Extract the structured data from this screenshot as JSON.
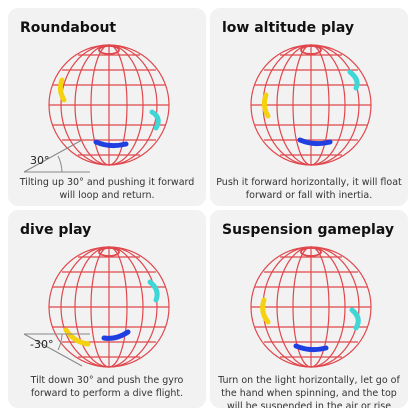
{
  "panels": [
    {
      "title": "Roundabout",
      "caption": "Tilting up 30° and pushing it forward will loop and return.",
      "angle_label": "30°"
    },
    {
      "title": "low altitude play",
      "caption": "Push it forward horizontally, it will float forward or fall with inertia."
    },
    {
      "title": "dive play",
      "caption": "Tilt down 30° and push the gyro forward to perform a dive flight.",
      "angle_label": "-30°"
    },
    {
      "title": "Suspension gameplay",
      "caption": "Turn on the light horizontally, let go of the hand when spinning, and the top will be suspended in the air or rise slowly."
    }
  ],
  "colors": {
    "ball_grid": "#e0474c",
    "light_yellow": "#f5d20f",
    "light_cyan": "#3fd6d6",
    "light_blue": "#1f3fe0",
    "panel_bg": "#f2f2f2"
  },
  "icons": {
    "ball": "spinner-ball-icon",
    "angle": "angle-indicator-icon"
  }
}
